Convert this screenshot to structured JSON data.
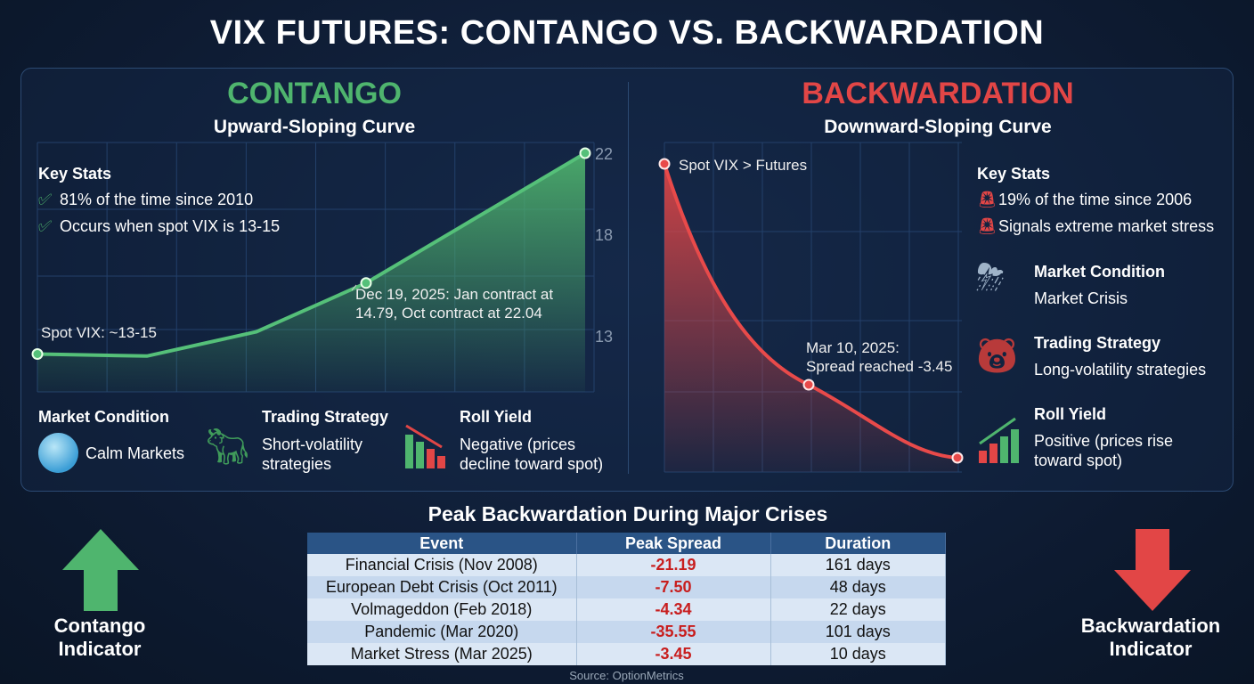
{
  "title": "VIX FUTURES: CONTANGO VS. BACKWARDATION",
  "colors": {
    "contango": "#4fb56e",
    "backwardation": "#e24646",
    "background": "#0f1e34",
    "table_header": "#2a5486"
  },
  "contango": {
    "heading": "CONTANGO",
    "subheading": "Upward-Sloping Curve",
    "key_stats_title": "Key Stats",
    "key_stats": [
      "81% of the time since 2010",
      "Occurs when spot VIX is 13-15"
    ],
    "key_stats_icon": "check-circle-icon",
    "spot_label": "Spot VIX: ~13-15",
    "annotation_line1": "Dec 19, 2025: Jan contract at",
    "annotation_line2": "14.79, Oct contract at 22.04",
    "market_condition": {
      "title": "Market Condition",
      "value": "Calm Markets",
      "icon": "water-waves-icon"
    },
    "trading_strategy": {
      "title": "Trading Strategy",
      "value_line1": "Short-volatility",
      "value_line2": "strategies",
      "icon": "bull-icon"
    },
    "roll_yield": {
      "title": "Roll Yield",
      "value_line1": "Negative (prices",
      "value_line2": "decline toward spot)",
      "icon": "declining-bars-icon"
    }
  },
  "backwardation": {
    "heading": "BACKWARDATION",
    "subheading": "Downward-Sloping Curve",
    "key_stats_title": "Key Stats",
    "key_stats": [
      "19% of the time since 2006",
      "Signals extreme market stress"
    ],
    "key_stats_icon": "siren-icon",
    "spot_label": "Spot VIX > Futures",
    "annotation_line1": "Mar 10, 2025:",
    "annotation_line2": "Spread reached -3.45",
    "market_condition": {
      "title": "Market Condition",
      "value": "Market Crisis",
      "icon": "storm-icon"
    },
    "trading_strategy": {
      "title": "Trading Strategy",
      "value": "Long-volatility strategies",
      "icon": "bear-icon"
    },
    "roll_yield": {
      "title": "Roll Yield",
      "value_line1": "Positive (prices rise",
      "value_line2": "toward spot)",
      "icon": "rising-bars-icon"
    }
  },
  "chart_data": [
    {
      "type": "area",
      "name": "",
      "yticks": [
        13,
        18,
        22
      ],
      "ylim": [
        11,
        22.5
      ],
      "grid": true,
      "points": [
        {
          "x": 0,
          "y": 12.1
        },
        {
          "x": 1,
          "y": 12.0
        },
        {
          "x": 2,
          "y": 13.2
        },
        {
          "x": 3,
          "y": 15.6
        },
        {
          "x": 4,
          "y": 18.8
        },
        {
          "x": 5,
          "y": 22.0
        }
      ],
      "markers": [
        0,
        3,
        5
      ]
    },
    {
      "type": "area",
      "name": "",
      "grid": true,
      "yticks": [],
      "shape": "downward-sloping",
      "markers": [
        "start",
        "mid",
        "end"
      ]
    }
  ],
  "table": {
    "title": "Peak Backwardation During Major Crises",
    "columns": [
      "Event",
      "Peak Spread",
      "Duration"
    ],
    "rows": [
      [
        "Financial Crisis (Nov 2008)",
        "-21.19",
        "161 days"
      ],
      [
        "European Debt Crisis (Oct 2011)",
        "-7.50",
        "48 days"
      ],
      [
        "Volmageddon (Feb 2018)",
        "-4.34",
        "22 days"
      ],
      [
        "Pandemic (Mar 2020)",
        "-35.55",
        "101 days"
      ],
      [
        "Market Stress (Mar 2025)",
        "-3.45",
        "10 days"
      ]
    ],
    "source": "Source: OptionMetrics"
  },
  "indicators": {
    "contango": {
      "line1": "Contango",
      "line2": "Indicator",
      "icon": "arrow-up-icon"
    },
    "backwardation": {
      "line1": "Backwardation",
      "line2": "Indicator",
      "icon": "arrow-down-icon"
    }
  }
}
